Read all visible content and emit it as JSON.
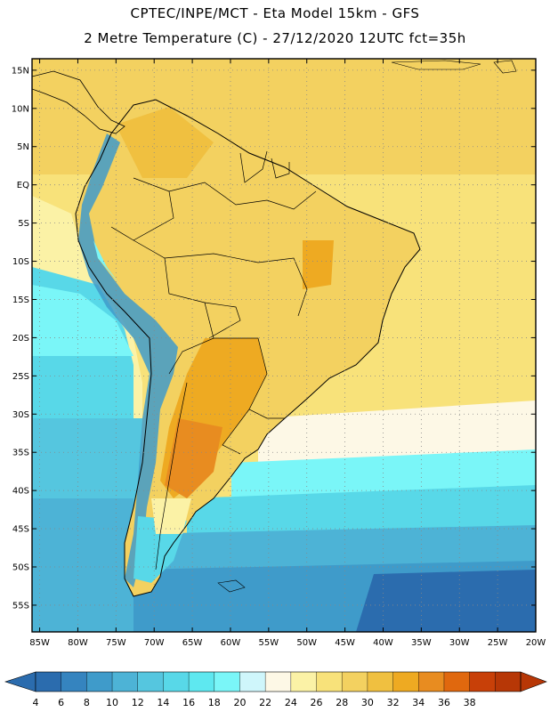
{
  "title_line1": "CPTEC/INPE/MCT -  Eta Model 15km - GFS",
  "title_line2": "2 Metre Temperature (C) - 27/12/2020 12UTC fct=35h",
  "map": {
    "lat_labels": [
      "15N",
      "10N",
      "5N",
      "EQ",
      "5S",
      "10S",
      "15S",
      "20S",
      "25S",
      "30S",
      "35S",
      "40S",
      "45S",
      "50S",
      "55S"
    ],
    "lat_values": [
      15,
      10,
      5,
      0,
      -5,
      -10,
      -15,
      -20,
      -25,
      -30,
      -35,
      -40,
      -45,
      -50,
      -55
    ],
    "lon_labels": [
      "85W",
      "80W",
      "75W",
      "70W",
      "65W",
      "60W",
      "55W",
      "50W",
      "45W",
      "40W",
      "35W",
      "30W",
      "25W",
      "20W"
    ],
    "lon_values": [
      -85,
      -80,
      -75,
      -70,
      -65,
      -60,
      -55,
      -50,
      -45,
      -40,
      -35,
      -30,
      -25,
      -20
    ],
    "lat_range": [
      -58.5,
      16.5
    ],
    "lon_range": [
      -86,
      -20
    ],
    "grid": "dotted"
  },
  "colorbar": {
    "labels": [
      "4",
      "6",
      "8",
      "10",
      "12",
      "14",
      "16",
      "18",
      "20",
      "22",
      "24",
      "26",
      "28",
      "30",
      "32",
      "34",
      "36",
      "38"
    ],
    "colors": [
      "#2b6cae",
      "#3584bf",
      "#3f9bca",
      "#4db3d6",
      "#55c6df",
      "#58d8e8",
      "#5ee8f0",
      "#7af6f8",
      "#cff6fb",
      "#fdf8e6",
      "#fbf2a6",
      "#f8e27a",
      "#f3d160",
      "#f0c040",
      "#eeaa22",
      "#e88c20",
      "#e0680e",
      "#c84008",
      "#b73706"
    ],
    "low_color": "#2b6cae",
    "high_color": "#b73706"
  }
}
